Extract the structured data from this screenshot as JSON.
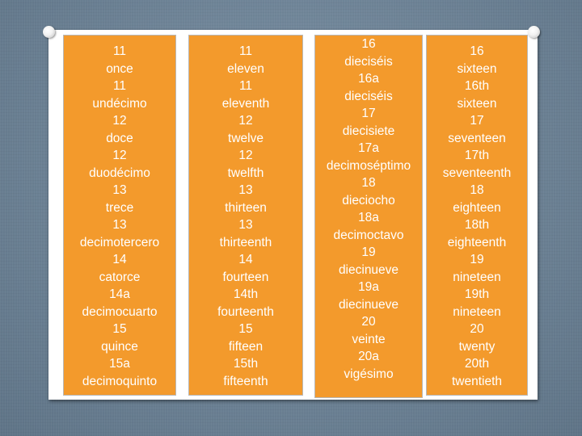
{
  "columns": [
    {
      "items": [
        "11",
        "once",
        "11",
        "undécimo",
        "12",
        "doce",
        "12",
        "duodécimo",
        "13",
        "trece",
        "13",
        "decimotercero",
        "14",
        "catorce",
        "14a",
        "decimocuarto",
        "15",
        "quince",
        "15a",
        "decimoquinto"
      ]
    },
    {
      "items": [
        "11",
        "eleven",
        "11",
        "eleventh",
        "12",
        "twelve",
        "12",
        "twelfth",
        "13",
        "thirteen",
        "13",
        "thirteenth",
        "14",
        "fourteen",
        "14th",
        "fourteenth",
        "15",
        "fifteen",
        "15th",
        "fifteenth"
      ]
    },
    {
      "items": [
        "16",
        "dieciséis",
        "16a",
        "dieciséis",
        "17",
        "diecisiete",
        "17a",
        "decimoséptimo",
        "18",
        "dieciocho",
        "18a",
        "decimoctavo",
        "19",
        "diecinueve",
        "19a",
        "diecinueve",
        "20",
        "veinte",
        "20a",
        "vigésimo"
      ]
    },
    {
      "items": [
        "16",
        "sixteen",
        "16th",
        "sixteen",
        "17",
        "seventeen",
        "17th",
        "seventeenth",
        "18",
        "eighteen",
        "18th",
        "eighteenth",
        "19",
        "nineteen",
        "19th",
        "nineteen",
        "20",
        "twenty",
        "20th",
        "twentieth"
      ]
    }
  ],
  "colors": {
    "box": "#f39a2c",
    "background": "#6b8296",
    "card": "#ffffff",
    "text": "#ffffff"
  }
}
